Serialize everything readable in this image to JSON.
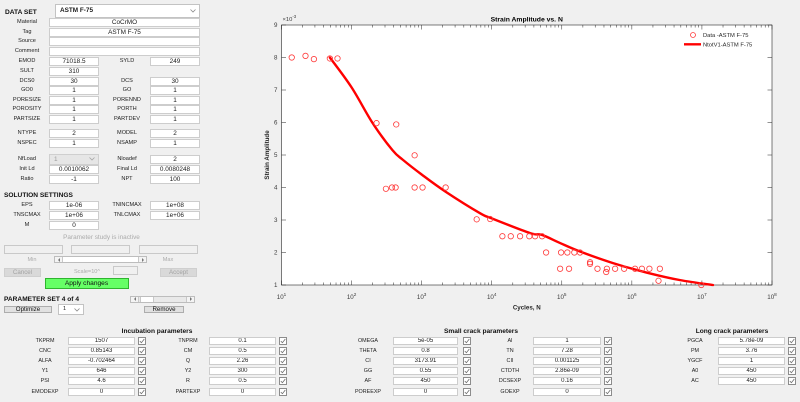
{
  "dataset": {
    "label": "DATA SET",
    "selected": "ASTM F-75"
  },
  "info": {
    "material": {
      "label": "Material",
      "value": "CoCrMO"
    },
    "tag": {
      "label": "Tag",
      "value": "ASTM F-75"
    },
    "source": {
      "label": "Source",
      "value": ""
    },
    "comment": {
      "label": "Comment",
      "value": ""
    }
  },
  "props": [
    {
      "l": {
        "label": "EMOD",
        "value": "71018.5"
      },
      "r": {
        "label": "SYLD",
        "value": "249"
      }
    },
    {
      "l": {
        "label": "SULT",
        "value": "310"
      }
    },
    {
      "l": {
        "label": "DCS0",
        "value": "30"
      },
      "r": {
        "label": "DCS",
        "value": "30"
      }
    },
    {
      "l": {
        "label": "GO0",
        "value": "1"
      },
      "r": {
        "label": "GO",
        "value": "1"
      }
    },
    {
      "l": {
        "label": "PORESIZE",
        "value": "1"
      },
      "r": {
        "label": "PORENND",
        "value": "1"
      }
    },
    {
      "l": {
        "label": "POROSITY",
        "value": "1"
      },
      "r": {
        "label": "PORTH",
        "value": "1"
      }
    },
    {
      "l": {
        "label": "PARTSIZE",
        "value": "1"
      },
      "r": {
        "label": "PARTDEV",
        "value": "1"
      }
    },
    {
      "l": {
        "label": "NTYPE",
        "value": "2"
      },
      "r": {
        "label": "MODEL",
        "value": "2"
      }
    },
    {
      "l": {
        "label": "NSPEC",
        "value": "1"
      },
      "r": {
        "label": "NSAMP",
        "value": "1"
      }
    }
  ],
  "loading": {
    "nfload": {
      "label": "NfLoad",
      "selected": "1"
    },
    "nloadef": {
      "label": "Nloadef",
      "value": "2"
    },
    "rows": [
      {
        "l": {
          "label": "Init Ld",
          "value": "0.0010062"
        },
        "r": {
          "label": "Final Ld",
          "value": "0.0080248"
        }
      },
      {
        "l": {
          "label": "Ratio",
          "value": "-1"
        },
        "r": {
          "label": "NPT",
          "value": "100"
        }
      }
    ]
  },
  "solution": {
    "title": "SOLUTION SETTINGS",
    "rows": [
      {
        "l": {
          "label": "EPS",
          "value": "1e-06"
        },
        "r": {
          "label": "TNINCMAX",
          "value": "1e+08"
        }
      },
      {
        "l": {
          "label": "TNSCMAX",
          "value": "1e+06"
        },
        "r": {
          "label": "TNLCMAX",
          "value": "1e+06"
        }
      },
      {
        "l": {
          "label": "M",
          "value": "0"
        }
      }
    ]
  },
  "param_study": {
    "status": "Parameter study is inactive",
    "min_value": "",
    "mid_value": "",
    "max_value": "",
    "min_label": "Min",
    "max_label": "Max",
    "cancel_label": "Cancel",
    "scale_label": "Scale=10^",
    "scale_value": "",
    "accept_label": "Accept"
  },
  "apply_label": "Apply changes",
  "param_set": {
    "label": "PARAMETER SET 4 of 4",
    "optimize_label": "Optimize",
    "selected": "1",
    "remove_label": "Remove"
  },
  "incubation": {
    "title": "Incubation parameters",
    "params": [
      {
        "label": "TKPRM",
        "value": "1507",
        "checked": true
      },
      {
        "label": "CNC",
        "value": "0.85143",
        "checked": true
      },
      {
        "label": "ALFA",
        "value": "-0.702464",
        "checked": true
      },
      {
        "label": "Y1",
        "value": "646",
        "checked": true
      },
      {
        "label": "PSI",
        "value": "4.6",
        "checked": true
      },
      {
        "label": "EMODEXP",
        "value": "0",
        "checked": true
      },
      {
        "label": "TNPRM",
        "value": "0.1",
        "checked": true
      },
      {
        "label": "CM",
        "value": "0.5",
        "checked": true
      },
      {
        "label": "Q",
        "value": "2.26",
        "checked": true
      },
      {
        "label": "Y2",
        "value": "300",
        "checked": true
      },
      {
        "label": "R",
        "value": "0.5",
        "checked": true
      },
      {
        "label": "PARTEXP",
        "value": "0",
        "checked": true
      }
    ]
  },
  "small_crack": {
    "title": "Small crack parameters",
    "params": [
      {
        "label": "OMEGA",
        "value": "5e-05",
        "checked": true
      },
      {
        "label": "THETA",
        "value": "0.8",
        "checked": true
      },
      {
        "label": "CI",
        "value": "3173.91",
        "checked": true
      },
      {
        "label": "GG",
        "value": "0.55",
        "checked": true
      },
      {
        "label": "AF",
        "value": "450",
        "checked": true
      },
      {
        "label": "POREEXP",
        "value": "0",
        "checked": true
      },
      {
        "label": "AI",
        "value": "1",
        "checked": true
      },
      {
        "label": "TN",
        "value": "7.28",
        "checked": true
      },
      {
        "label": "CII",
        "value": "0.001125",
        "checked": true
      },
      {
        "label": "CTDTH",
        "value": "2.86e-09",
        "checked": true
      },
      {
        "label": "DCSEXP",
        "value": "0.16",
        "checked": true
      },
      {
        "label": "GOEXP",
        "value": "0",
        "checked": true
      }
    ]
  },
  "long_crack": {
    "title": "Long crack parameters",
    "params": [
      {
        "label": "PGCA",
        "value": "5.78e-09",
        "checked": true
      },
      {
        "label": "PM",
        "value": "3.76",
        "checked": true
      },
      {
        "label": "YGCF",
        "value": "1",
        "checked": true
      },
      {
        "label": "A0",
        "value": "450",
        "checked": true
      },
      {
        "label": "AC",
        "value": "450",
        "checked": true
      }
    ]
  },
  "colors": {
    "apply_green": "#66ff66",
    "series_red": "#ff0000",
    "marker_red": "#ff3b3b",
    "background": "#f0f0f0"
  },
  "chart_data": {
    "type": "scatter",
    "title": "Strain Amplitude vs. N",
    "xlabel": "Cycles, N",
    "ylabel": "Strain Amplitude",
    "y_multiplier": "×10^-3",
    "xscale": "log",
    "xlim": [
      10,
      100000000
    ],
    "ylim": [
      1,
      9
    ],
    "xticks": [
      10,
      100,
      1000,
      10000,
      100000,
      1000000,
      10000000,
      100000000
    ],
    "xticklabels": [
      "10^1",
      "10^2",
      "10^3",
      "10^4",
      "10^5",
      "10^6",
      "10^7",
      "10^8"
    ],
    "yticks": [
      1,
      2,
      3,
      4,
      5,
      6,
      7,
      8,
      9
    ],
    "yticklabels": [
      "1",
      "2",
      "3",
      "4",
      "5",
      "6",
      "7",
      "8",
      "9"
    ],
    "grid": false,
    "legend_position": "northeast",
    "series": [
      {
        "name": "Data -ASTM F-75",
        "mode": "markers",
        "x": [
          14,
          22,
          29,
          49,
          63,
          227,
          434,
          794,
          309,
          377,
          425,
          794,
          1030,
          2200,
          6100,
          9500,
          14200,
          18700,
          25400,
          34400,
          41600,
          52300,
          59700,
          97700,
          120000,
          151000,
          182000,
          253000,
          253000,
          94700,
          127000,
          323000,
          440000,
          430000,
          577000,
          776000,
          1110000,
          1390000,
          1780000,
          2510000,
          2400000,
          9800000
        ],
        "y": [
          8.0,
          8.05,
          7.95,
          7.97,
          7.97,
          5.98,
          5.94,
          4.99,
          3.96,
          4.0,
          4.0,
          4.0,
          4.0,
          4.0,
          3.02,
          3.03,
          2.5,
          2.5,
          2.5,
          2.5,
          2.5,
          2.5,
          2.0,
          2.0,
          2.0,
          2.0,
          2.0,
          1.7,
          1.65,
          1.5,
          1.5,
          1.5,
          1.5,
          1.4,
          1.5,
          1.5,
          1.5,
          1.5,
          1.5,
          1.5,
          1.13,
          1.0
        ]
      },
      {
        "name": "NtotV1-ASTM F-75",
        "mode": "line",
        "x": [
          49,
          100,
          200,
          383,
          541,
          1000,
          2200,
          6800,
          10000,
          35000,
          52300,
          94700,
          182000,
          546000,
          1640000,
          4900000,
          14400000
        ],
        "y": [
          8.0,
          7.08,
          5.98,
          5.15,
          4.85,
          4.4,
          3.87,
          3.21,
          3.05,
          2.6,
          2.54,
          2.29,
          2.03,
          1.67,
          1.38,
          1.15,
          1.0
        ]
      }
    ]
  }
}
